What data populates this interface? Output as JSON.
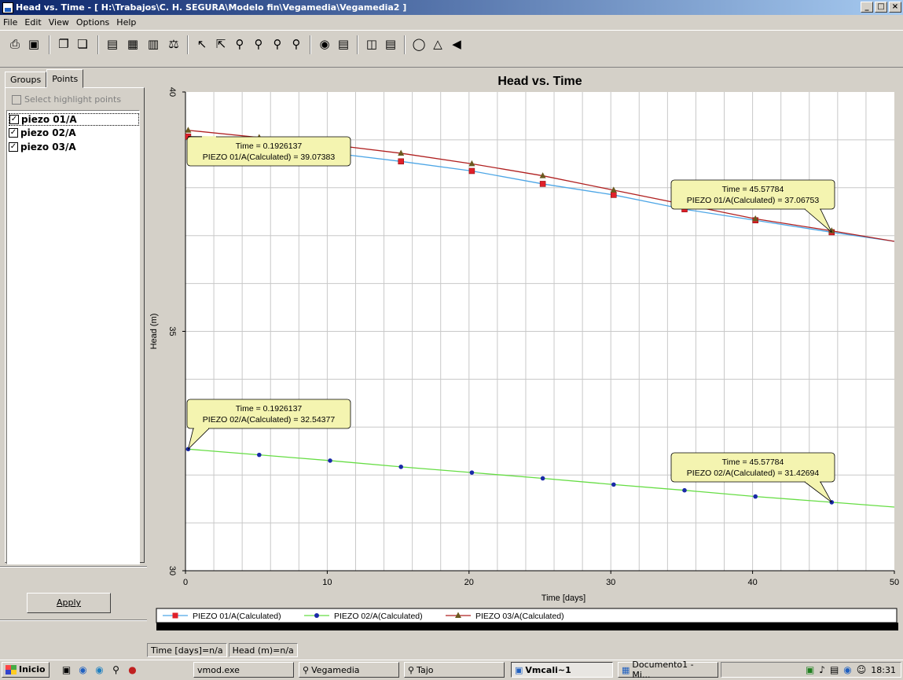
{
  "window": {
    "title": "Head vs. Time - [ H:\\Trabajos\\C. H. SEGURA\\Modelo fin\\Vegamedia\\Vegamedia2 ]",
    "buttons": [
      "_",
      "□",
      "×"
    ]
  },
  "menu": [
    "File",
    "Edit",
    "View",
    "Options",
    "Help"
  ],
  "toolbar_icons": [
    "print-icon",
    "save-icon",
    "copy-icon",
    "paste-icon",
    "chart-icon",
    "bar-chart-icon",
    "area-chart-icon",
    "scale-icon",
    "pointer-icon",
    "select-icon",
    "zoom-in-icon",
    "zoom-window-icon",
    "zoom-out-icon",
    "zoom-prev-icon",
    "legend-icon",
    "properties-icon",
    "columns-icon",
    "rows-icon",
    "binoculars-icon",
    "network-icon",
    "export-icon"
  ],
  "left_panel": {
    "tabs": [
      "Groups",
      "Points"
    ],
    "active_tab": "Points",
    "highlight_checkbox_label": "Select highlight points",
    "points": [
      {
        "label": "piezo 01/A",
        "checked": true
      },
      {
        "label": "piezo 02/A",
        "checked": true
      },
      {
        "label": "piezo 03/A",
        "checked": true
      }
    ],
    "apply_label": "Apply"
  },
  "status": {
    "time": "Time [days]=n/a",
    "head": "Head (m)=n/a"
  },
  "taskbar": {
    "start_label": "Inicio",
    "items": [
      "vmod.exe",
      "Vegamedia",
      "Tajo",
      "Vmcali~1",
      "Documento1 - Mi..."
    ],
    "active_item": "Vmcali~1",
    "clock": "18:31"
  },
  "chart_data": {
    "type": "line",
    "title": "Head vs. Time",
    "xlabel": "Time  [days]",
    "ylabel": "Head (m)",
    "xlim": [
      0,
      50
    ],
    "ylim": [
      30,
      40
    ],
    "xticks": [
      0,
      10,
      20,
      30,
      40,
      50
    ],
    "yticks": [
      30,
      35,
      40
    ],
    "grid": true,
    "legend_position": "bottom",
    "series": [
      {
        "name": "PIEZO 01/A(Calculated)",
        "color": "#4da6e6",
        "marker": "square",
        "marker_color": "#e0202a",
        "x": [
          0.19,
          5.2,
          10.2,
          15.2,
          20.2,
          25.2,
          30.2,
          35.2,
          40.2,
          45.58,
          50
        ],
        "y": [
          39.07,
          38.9,
          38.73,
          38.55,
          38.35,
          38.08,
          37.85,
          37.55,
          37.32,
          37.07,
          36.88
        ]
      },
      {
        "name": "PIEZO 02/A(Calculated)",
        "color": "#66dd44",
        "marker": "circle",
        "marker_color": "#1a2aa8",
        "x": [
          0.19,
          5.2,
          10.2,
          15.2,
          20.2,
          25.2,
          30.2,
          35.2,
          40.2,
          45.58,
          50
        ],
        "y": [
          32.54,
          32.42,
          32.3,
          32.17,
          32.05,
          31.93,
          31.8,
          31.68,
          31.55,
          31.43,
          31.33
        ]
      },
      {
        "name": "PIEZO 03/A(Calculated)",
        "color": "#b02020",
        "marker": "triangle",
        "marker_color": "#6b5a20",
        "x": [
          0.19,
          5.2,
          10.2,
          15.2,
          20.2,
          25.2,
          30.2,
          35.2,
          40.2,
          45.58,
          50
        ],
        "y": [
          39.2,
          39.05,
          38.9,
          38.72,
          38.5,
          38.25,
          37.95,
          37.65,
          37.35,
          37.1,
          36.88
        ]
      }
    ],
    "annotations": [
      {
        "line1": "Time = 0.1926137",
        "line2": "PIEZO 01/A(Calculated) = 39.07383",
        "x": 0.19,
        "y": 39.07
      },
      {
        "line1": "Time = 45.57784",
        "line2": "PIEZO 01/A(Calculated) = 37.06753",
        "x": 45.58,
        "y": 37.07
      },
      {
        "line1": "Time = 0.1926137",
        "line2": "PIEZO 02/A(Calculated) = 32.54377",
        "x": 0.19,
        "y": 32.54
      },
      {
        "line1": "Time = 45.57784",
        "line2": "PIEZO 02/A(Calculated) = 31.42694",
        "x": 45.58,
        "y": 31.43
      }
    ]
  }
}
